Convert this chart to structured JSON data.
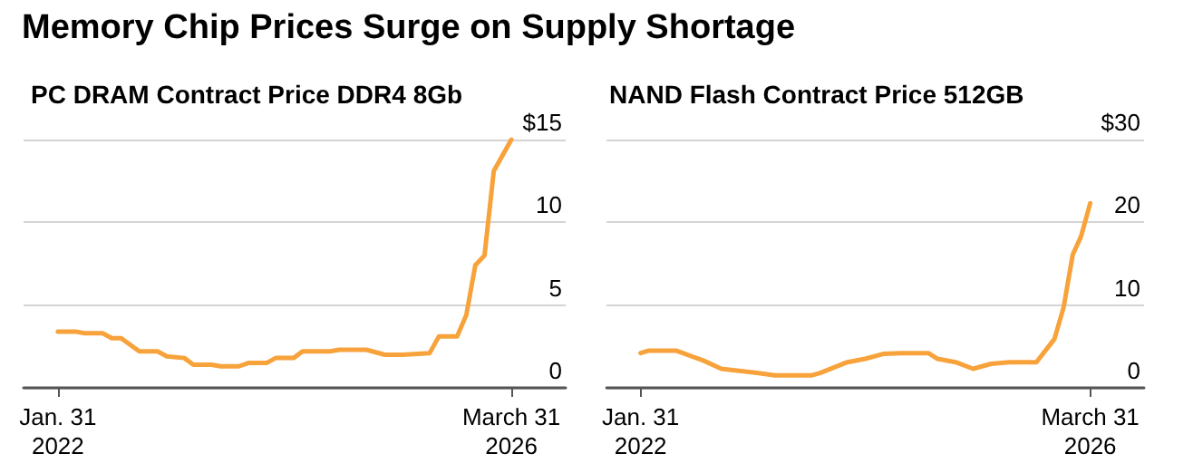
{
  "chart_data": [
    {
      "type": "line",
      "title": "PC DRAM Contract Price DDR4 8Gb",
      "annotations": [
        "Memory Chip Prices Surge on Supply Shortage"
      ],
      "x": [
        "2022-01-31",
        "2022-03-31",
        "2022-04-30",
        "2022-06-30",
        "2022-07-31",
        "2022-08-31",
        "2022-10-31",
        "2022-12-31",
        "2023-01-31",
        "2023-03-31",
        "2023-04-30",
        "2023-06-30",
        "2023-07-31",
        "2023-09-30",
        "2023-10-31",
        "2023-12-31",
        "2024-01-31",
        "2024-03-31",
        "2024-04-30",
        "2024-07-31",
        "2024-08-31",
        "2024-11-30",
        "2025-01-31",
        "2025-03-31",
        "2025-06-30",
        "2025-07-31",
        "2025-09-30",
        "2025-10-31",
        "2025-11-30",
        "2025-12-31",
        "2026-01-31",
        "2026-03-31"
      ],
      "series": [
        {
          "color": "#f7a23a",
          "values": [
            3.4,
            3.4,
            3.3,
            3.3,
            3.0,
            3.0,
            2.2,
            2.2,
            1.9,
            1.8,
            1.4,
            1.4,
            1.3,
            1.3,
            1.5,
            1.5,
            1.8,
            1.8,
            2.2,
            2.2,
            2.3,
            2.3,
            2.0,
            2.0,
            2.1,
            3.1,
            3.1,
            4.4,
            7.4,
            8.0,
            13.1,
            15.0
          ]
        }
      ],
      "xlim": [
        "2021-10-08",
        "2026-09-29"
      ],
      "xticks": [
        {
          "value": "2022-01-31",
          "label": "Jan. 31\n2022"
        },
        {
          "value": "2026-03-31",
          "label": "March 31\n2026"
        }
      ],
      "ylim": [
        0,
        15
      ],
      "yticks": [
        0,
        5,
        10,
        {
          "value": 15,
          "label": "$15"
        }
      ],
      "grid": "y",
      "marker": "none",
      "line_style": "solid"
    },
    {
      "type": "line",
      "title": "NAND Flash Contract Price 512GB",
      "x": [
        "2022-01-31",
        "2022-02-28",
        "2022-05-31",
        "2022-08-31",
        "2022-10-31",
        "2023-02-28",
        "2023-04-30",
        "2023-08-31",
        "2023-09-30",
        "2023-12-31",
        "2024-02-29",
        "2024-04-30",
        "2024-06-30",
        "2024-09-30",
        "2024-10-31",
        "2024-12-31",
        "2025-02-28",
        "2025-04-30",
        "2025-06-30",
        "2025-09-30",
        "2025-11-30",
        "2025-12-31",
        "2026-01-31",
        "2026-02-28",
        "2026-03-31"
      ],
      "series": [
        {
          "color": "#f7a23a",
          "values": [
            4.2,
            4.5,
            4.5,
            3.3,
            2.3,
            1.8,
            1.5,
            1.5,
            1.8,
            3.1,
            3.5,
            4.1,
            4.2,
            4.2,
            3.5,
            3.1,
            2.3,
            2.9,
            3.1,
            3.1,
            5.9,
            9.7,
            16.1,
            18.3,
            22.3
          ]
        }
      ],
      "xlim": [
        "2021-10-08",
        "2026-09-29"
      ],
      "xticks": [
        {
          "value": "2022-01-31",
          "label": "Jan. 31\n2022"
        },
        {
          "value": "2026-03-31",
          "label": "March 31\n2026"
        }
      ],
      "ylim": [
        0,
        30
      ],
      "yticks": [
        0,
        10,
        20,
        {
          "value": 30,
          "label": "$30"
        }
      ],
      "grid": "y",
      "marker": "none",
      "line_style": "solid"
    }
  ]
}
